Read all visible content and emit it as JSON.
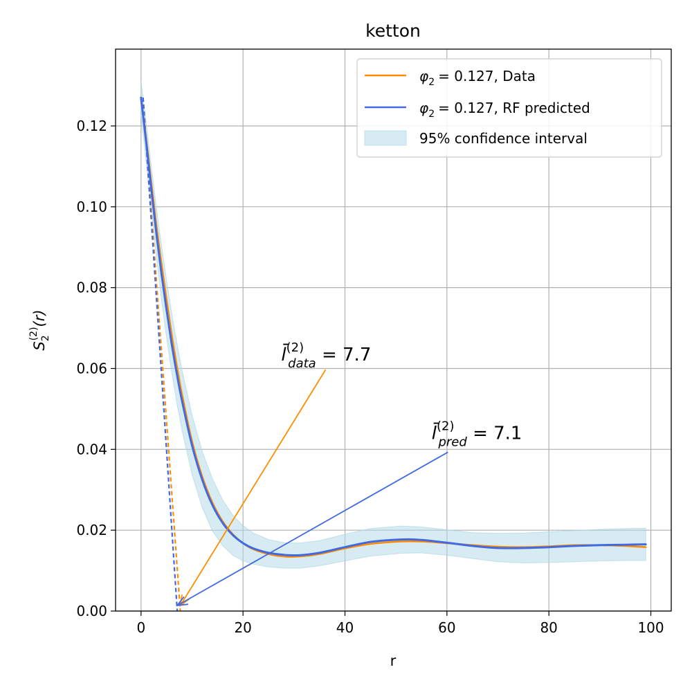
{
  "chart_data": {
    "type": "line",
    "title": "ketton",
    "xlabel": "r",
    "ylabel": {
      "base": "S",
      "sub": "2",
      "sup": "(2)",
      "arg": "(r)"
    },
    "xlim": [
      -5,
      104
    ],
    "ylim": [
      0,
      0.139
    ],
    "xticks": [
      0,
      20,
      40,
      60,
      80,
      100
    ],
    "xtick_labels": [
      "0",
      "20",
      "40",
      "60",
      "80",
      "100"
    ],
    "yticks": [
      0.0,
      0.02,
      0.04,
      0.06,
      0.08,
      0.1,
      0.12
    ],
    "ytick_labels": [
      "0.00",
      "0.02",
      "0.04",
      "0.06",
      "0.08",
      "0.10",
      "0.12"
    ],
    "grid": true,
    "legend_position": "top-right",
    "colors": {
      "data": "#ff8c00",
      "pred": "#4169e1",
      "band": "#add8e6"
    },
    "series": [
      {
        "name": "Data",
        "legend": {
          "phi": "φ",
          "sub": "2",
          "value": "= 0.127, Data"
        },
        "x": [
          0,
          1,
          2,
          3,
          4,
          5,
          6,
          7,
          8,
          10,
          12,
          14,
          16,
          18,
          20,
          22,
          25,
          28,
          31,
          35,
          40,
          45,
          51,
          55,
          60,
          65,
          70,
          75,
          80,
          85,
          90,
          95,
          99
        ],
        "values": [
          0.127,
          0.117,
          0.106,
          0.0955,
          0.086,
          0.077,
          0.0685,
          0.0608,
          0.0538,
          0.042,
          0.0333,
          0.0268,
          0.0222,
          0.019,
          0.0168,
          0.0153,
          0.0141,
          0.0135,
          0.0135,
          0.0141,
          0.0155,
          0.0166,
          0.0172,
          0.0172,
          0.0168,
          0.0163,
          0.0159,
          0.0158,
          0.016,
          0.0163,
          0.0163,
          0.0161,
          0.0158
        ]
      },
      {
        "name": "RF predicted",
        "legend": {
          "phi": "φ",
          "sub": "2",
          "value": "= 0.127, RF predicted"
        },
        "x": [
          0,
          1,
          2,
          3,
          4,
          5,
          6,
          7,
          8,
          10,
          12,
          14,
          16,
          18,
          20,
          22,
          25,
          28,
          31,
          35,
          40,
          45,
          51,
          55,
          60,
          65,
          70,
          75,
          80,
          85,
          90,
          95,
          99
        ],
        "values": [
          0.127,
          0.116,
          0.1045,
          0.0935,
          0.0835,
          0.0745,
          0.0662,
          0.0588,
          0.0522,
          0.041,
          0.0325,
          0.0262,
          0.0218,
          0.0188,
          0.0168,
          0.0155,
          0.0144,
          0.0139,
          0.0138,
          0.0144,
          0.0158,
          0.0171,
          0.0177,
          0.0176,
          0.0169,
          0.0161,
          0.0156,
          0.0156,
          0.0158,
          0.0161,
          0.0163,
          0.0164,
          0.0165
        ]
      }
    ],
    "confidence_band": {
      "label": "95% confidence interval",
      "x": [
        0,
        1,
        2,
        3,
        4,
        5,
        6,
        7,
        8,
        10,
        12,
        14,
        16,
        18,
        20,
        22,
        25,
        28,
        31,
        35,
        40,
        45,
        51,
        55,
        60,
        65,
        70,
        75,
        80,
        85,
        90,
        95,
        99
      ],
      "upper": [
        0.131,
        0.121,
        0.11,
        0.1,
        0.0905,
        0.0818,
        0.0738,
        0.0665,
        0.0598,
        0.0485,
        0.0395,
        0.0327,
        0.0275,
        0.0237,
        0.0211,
        0.0193,
        0.0177,
        0.0169,
        0.0168,
        0.0174,
        0.019,
        0.0204,
        0.021,
        0.0208,
        0.0201,
        0.0194,
        0.0192,
        0.0193,
        0.0196,
        0.0199,
        0.0202,
        0.0204,
        0.0205
      ],
      "lower": [
        0.123,
        0.111,
        0.0995,
        0.0878,
        0.0772,
        0.0677,
        0.0592,
        0.0516,
        0.0449,
        0.0338,
        0.0256,
        0.0198,
        0.0162,
        0.0138,
        0.0124,
        0.0116,
        0.0109,
        0.0106,
        0.0106,
        0.0112,
        0.0124,
        0.0136,
        0.0143,
        0.0144,
        0.0138,
        0.013,
        0.0122,
        0.0119,
        0.012,
        0.0122,
        0.0124,
        0.0125,
        0.0125
      ]
    },
    "tangent_lines": [
      {
        "series": "Data",
        "from": [
          0.4,
          0.127
        ],
        "to": [
          7.7,
          0.0
        ]
      },
      {
        "series": "RF predicted",
        "from": [
          0.4,
          0.127
        ],
        "to": [
          7.1,
          0.0
        ]
      }
    ],
    "annotations": [
      {
        "series": "Data",
        "text": {
          "base": "l̄",
          "sup": "(2)",
          "sub": "data",
          "value": " = 7.7"
        },
        "text_anchor": [
          27.5,
          0.062
        ],
        "arrow_from": [
          36.2,
          0.0597
        ],
        "arrow_to": [
          7.7,
          0.0
        ]
      },
      {
        "series": "RF predicted",
        "text": {
          "base": "l̄",
          "sup": "(2)",
          "sub": "pred",
          "value": " = 7.1"
        },
        "text_anchor": [
          57,
          0.0425
        ],
        "arrow_from": [
          60.2,
          0.0393
        ],
        "arrow_to": [
          7.1,
          0.0
        ]
      }
    ]
  }
}
